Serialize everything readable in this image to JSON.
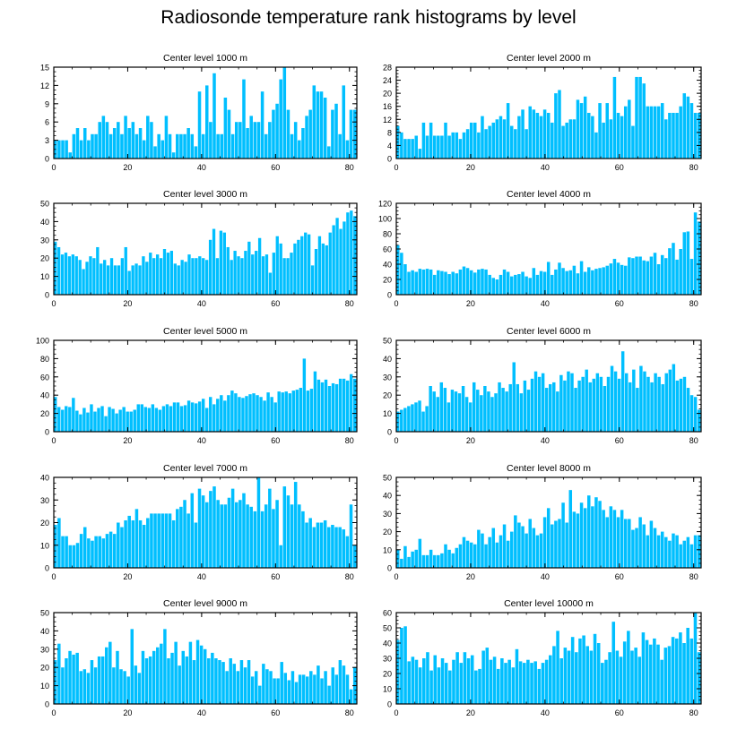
{
  "page": {
    "title": "Radiosonde temperature rank histograms by level"
  },
  "chart_data": [
    {
      "type": "bar",
      "title": "Center level 1000 m",
      "ylim": [
        0,
        15
      ],
      "yticks": [
        0,
        3,
        6,
        9,
        12,
        15
      ],
      "xlim": [
        0,
        82
      ],
      "xticks": [
        0,
        20,
        40,
        60,
        80
      ],
      "bar_color": "#00bfff",
      "values": [
        3,
        3,
        3,
        3,
        1,
        4,
        5,
        3,
        5,
        3,
        4,
        4,
        6,
        7,
        6,
        4,
        5,
        6,
        4,
        7,
        5,
        6,
        4,
        5,
        3,
        7,
        6,
        2,
        4,
        3,
        7,
        4,
        1,
        4,
        4,
        4,
        5,
        4,
        2,
        11,
        4,
        12,
        6,
        14,
        4,
        4,
        10,
        8,
        4,
        6,
        6,
        13,
        5,
        7,
        6,
        6,
        11,
        4,
        6,
        8,
        9,
        13,
        15,
        8,
        4,
        6,
        3,
        5,
        7,
        8,
        12,
        11,
        11,
        10,
        2,
        8,
        9,
        4,
        12,
        3,
        8,
        8
      ]
    },
    {
      "type": "bar",
      "title": "Center level 2000 m",
      "ylim": [
        0,
        28
      ],
      "yticks": [
        0,
        4,
        8,
        12,
        16,
        20,
        24,
        28
      ],
      "xlim": [
        0,
        82
      ],
      "xticks": [
        0,
        20,
        40,
        60,
        80
      ],
      "bar_color": "#00bfff",
      "values": [
        10,
        8,
        6,
        6,
        6,
        7,
        3,
        11,
        7,
        11,
        7,
        7,
        7,
        11,
        7,
        8,
        8,
        6,
        8,
        9,
        11,
        11,
        8,
        13,
        9,
        10,
        11,
        12,
        13,
        12,
        17,
        10,
        9,
        13,
        15,
        9,
        16,
        15,
        14,
        13,
        15,
        14,
        11,
        20,
        21,
        10,
        11,
        12,
        12,
        18,
        17,
        19,
        14,
        13,
        8,
        17,
        11,
        17,
        12,
        25,
        14,
        13,
        16,
        18,
        10,
        25,
        25,
        23,
        16,
        16,
        16,
        16,
        17,
        12,
        14,
        14,
        14,
        16,
        20,
        19,
        17,
        14,
        14
      ]
    },
    {
      "type": "bar",
      "title": "Center level 3000 m",
      "ylim": [
        0,
        50
      ],
      "yticks": [
        0,
        10,
        20,
        30,
        40,
        50
      ],
      "xlim": [
        0,
        82
      ],
      "xticks": [
        0,
        20,
        40,
        60,
        80
      ],
      "bar_color": "#00bfff",
      "values": [
        29,
        26,
        22,
        23,
        21,
        22,
        21,
        19,
        14,
        18,
        21,
        20,
        26,
        17,
        19,
        16,
        20,
        16,
        16,
        20,
        26,
        13,
        16,
        17,
        16,
        21,
        18,
        23,
        20,
        22,
        20,
        25,
        23,
        24,
        17,
        16,
        19,
        18,
        22,
        20,
        20,
        21,
        20,
        19,
        30,
        36,
        20,
        35,
        34,
        26,
        19,
        24,
        21,
        20,
        24,
        29,
        22,
        24,
        31,
        21,
        22,
        12,
        23,
        32,
        28,
        20,
        20,
        23,
        28,
        30,
        32,
        34,
        33,
        16,
        25,
        32,
        28,
        27,
        34,
        38,
        42,
        36,
        40,
        45,
        46,
        43
      ]
    },
    {
      "type": "bar",
      "title": "Center level 4000 m",
      "ylim": [
        0,
        120
      ],
      "yticks": [
        0,
        20,
        40,
        60,
        80,
        100,
        120
      ],
      "xlim": [
        0,
        82
      ],
      "xticks": [
        0,
        20,
        40,
        60,
        80
      ],
      "bar_color": "#00bfff",
      "values": [
        65,
        55,
        40,
        30,
        32,
        30,
        34,
        33,
        34,
        33,
        26,
        32,
        31,
        30,
        27,
        30,
        28,
        33,
        37,
        35,
        32,
        29,
        33,
        34,
        33,
        26,
        22,
        20,
        26,
        33,
        30,
        24,
        26,
        27,
        30,
        24,
        22,
        35,
        26,
        31,
        30,
        43,
        26,
        33,
        42,
        35,
        31,
        32,
        38,
        28,
        44,
        30,
        36,
        32,
        34,
        35,
        36,
        38,
        41,
        47,
        42,
        39,
        38,
        49,
        48,
        50,
        50,
        45,
        44,
        50,
        55,
        40,
        52,
        48,
        61,
        68,
        46,
        60,
        82,
        83,
        47,
        108,
        96
      ]
    },
    {
      "type": "bar",
      "title": "Center level 5000 m",
      "ylim": [
        0,
        100
      ],
      "yticks": [
        0,
        20,
        40,
        60,
        80,
        100
      ],
      "xlim": [
        0,
        82
      ],
      "xticks": [
        0,
        20,
        40,
        60,
        80
      ],
      "bar_color": "#00bfff",
      "values": [
        38,
        27,
        24,
        28,
        27,
        37,
        23,
        19,
        26,
        21,
        30,
        22,
        26,
        28,
        17,
        27,
        25,
        20,
        24,
        27,
        22,
        22,
        24,
        30,
        30,
        27,
        26,
        30,
        26,
        24,
        28,
        30,
        28,
        32,
        32,
        28,
        29,
        34,
        32,
        31,
        33,
        36,
        26,
        38,
        30,
        36,
        40,
        34,
        40,
        45,
        42,
        38,
        37,
        39,
        41,
        42,
        40,
        38,
        34,
        43,
        38,
        32,
        44,
        43,
        44,
        42,
        45,
        46,
        48,
        80,
        45,
        47,
        66,
        57,
        54,
        57,
        50,
        53,
        52,
        58,
        58,
        56,
        63,
        58
      ]
    },
    {
      "type": "bar",
      "title": "Center level 6000 m",
      "ylim": [
        0,
        50
      ],
      "yticks": [
        0,
        10,
        20,
        30,
        40,
        50
      ],
      "xlim": [
        0,
        82
      ],
      "xticks": [
        0,
        20,
        40,
        60,
        80
      ],
      "bar_color": "#00bfff",
      "values": [
        11,
        12,
        13,
        14,
        15,
        16,
        17,
        11,
        14,
        25,
        22,
        19,
        27,
        24,
        16,
        23,
        22,
        21,
        25,
        19,
        16,
        27,
        23,
        20,
        25,
        22,
        19,
        21,
        27,
        24,
        22,
        26,
        38,
        26,
        21,
        28,
        23,
        29,
        33,
        30,
        32,
        24,
        26,
        27,
        22,
        31,
        28,
        33,
        32,
        24,
        28,
        30,
        34,
        27,
        29,
        32,
        30,
        25,
        30,
        36,
        33,
        29,
        44,
        32,
        27,
        34,
        24,
        36,
        33,
        30,
        27,
        32,
        30,
        26,
        32,
        34,
        37,
        28,
        29,
        30,
        24,
        20,
        19,
        12
      ]
    },
    {
      "type": "bar",
      "title": "Center level 7000 m",
      "ylim": [
        0,
        40
      ],
      "yticks": [
        0,
        10,
        20,
        30,
        40
      ],
      "xlim": [
        0,
        82
      ],
      "xticks": [
        0,
        20,
        40,
        60,
        80
      ],
      "bar_color": "#00bfff",
      "values": [
        19,
        22,
        14,
        14,
        10,
        10,
        11,
        15,
        18,
        13,
        12,
        14,
        14,
        13,
        15,
        16,
        15,
        20,
        18,
        21,
        23,
        21,
        26,
        21,
        19,
        22,
        24,
        24,
        24,
        24,
        24,
        24,
        21,
        26,
        27,
        30,
        24,
        33,
        20,
        35,
        32,
        29,
        34,
        36,
        30,
        28,
        28,
        31,
        35,
        29,
        30,
        33,
        28,
        27,
        25,
        40,
        25,
        28,
        35,
        26,
        30,
        10,
        36,
        32,
        28,
        38,
        28,
        25,
        20,
        22,
        18,
        20,
        20,
        21,
        18,
        19,
        18,
        18,
        17,
        14,
        28,
        10
      ]
    },
    {
      "type": "bar",
      "title": "Center level 8000 m",
      "ylim": [
        0,
        50
      ],
      "yticks": [
        0,
        10,
        20,
        30,
        40,
        50
      ],
      "xlim": [
        0,
        82
      ],
      "xticks": [
        0,
        20,
        40,
        60,
        80
      ],
      "bar_color": "#00bfff",
      "values": [
        10,
        5,
        12,
        6,
        9,
        10,
        16,
        7,
        7,
        10,
        7,
        7,
        8,
        13,
        10,
        8,
        11,
        13,
        17,
        15,
        14,
        13,
        21,
        19,
        13,
        17,
        22,
        14,
        18,
        24,
        15,
        20,
        29,
        25,
        23,
        19,
        27,
        22,
        18,
        19,
        28,
        33,
        24,
        26,
        27,
        36,
        25,
        43,
        31,
        30,
        36,
        33,
        40,
        34,
        39,
        37,
        32,
        28,
        34,
        32,
        28,
        32,
        27,
        27,
        21,
        22,
        28,
        24,
        18,
        26,
        22,
        18,
        20,
        17,
        15,
        19,
        18,
        13,
        15,
        17,
        13,
        18,
        18
      ]
    },
    {
      "type": "bar",
      "title": "Center level 9000 m",
      "ylim": [
        0,
        50
      ],
      "yticks": [
        0,
        10,
        20,
        30,
        40,
        50
      ],
      "xlim": [
        0,
        82
      ],
      "xticks": [
        0,
        20,
        40,
        60,
        80
      ],
      "bar_color": "#00bfff",
      "values": [
        24,
        33,
        20,
        25,
        29,
        27,
        28,
        18,
        19,
        17,
        24,
        20,
        26,
        26,
        31,
        34,
        20,
        29,
        19,
        18,
        15,
        41,
        21,
        17,
        29,
        25,
        26,
        29,
        31,
        33,
        41,
        25,
        28,
        34,
        21,
        29,
        26,
        34,
        24,
        35,
        32,
        30,
        25,
        28,
        25,
        24,
        23,
        18,
        25,
        22,
        18,
        24,
        20,
        24,
        15,
        18,
        10,
        22,
        19,
        18,
        14,
        14,
        23,
        17,
        13,
        18,
        12,
        16,
        16,
        15,
        18,
        16,
        21,
        14,
        18,
        10,
        20,
        16,
        24,
        21,
        16,
        8,
        20
      ]
    },
    {
      "type": "bar",
      "title": "Center level 10000 m",
      "ylim": [
        0,
        60
      ],
      "yticks": [
        0,
        10,
        20,
        30,
        40,
        50,
        60
      ],
      "xlim": [
        0,
        82
      ],
      "xticks": [
        0,
        20,
        40,
        60,
        80
      ],
      "bar_color": "#00bfff",
      "values": [
        42,
        50,
        51,
        28,
        31,
        29,
        24,
        30,
        34,
        22,
        32,
        24,
        30,
        27,
        22,
        29,
        34,
        27,
        34,
        30,
        32,
        22,
        23,
        35,
        37,
        29,
        31,
        23,
        30,
        27,
        29,
        24,
        36,
        28,
        27,
        29,
        27,
        28,
        23,
        27,
        29,
        32,
        38,
        48,
        30,
        37,
        35,
        44,
        34,
        43,
        45,
        38,
        35,
        46,
        40,
        27,
        29,
        34,
        54,
        35,
        31,
        41,
        48,
        35,
        37,
        31,
        47,
        42,
        39,
        43,
        39,
        29,
        37,
        38,
        44,
        43,
        47,
        40,
        50,
        43,
        60,
        34
      ]
    }
  ]
}
